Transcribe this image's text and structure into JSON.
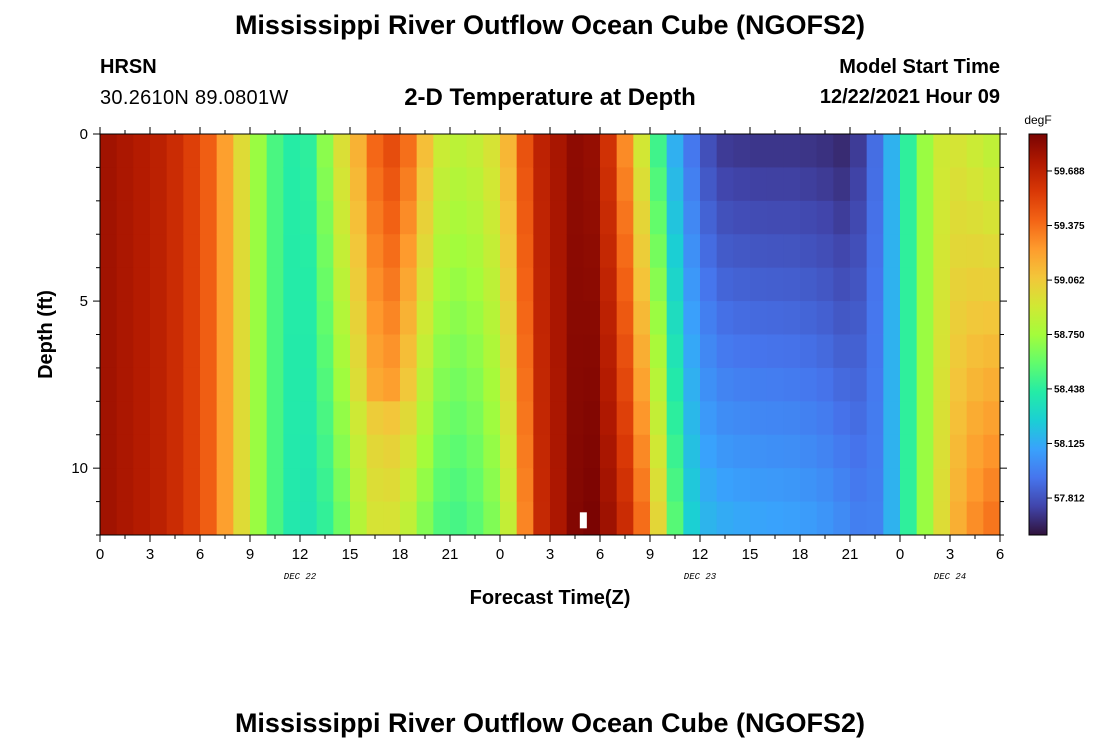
{
  "header": {
    "title": "Mississippi River Outflow Ocean Cube (NGOFS2)",
    "station_id": "HRSN",
    "station_coords": "30.2610N  89.0801W",
    "subtitle": "2-D Temperature at Depth",
    "model_start_label": "Model Start Time",
    "model_start_value": "12/22/2021 Hour 09"
  },
  "footer": {
    "title": "Mississippi River Outflow Ocean Cube (NGOFS2)"
  },
  "chart_data": {
    "type": "heatmap",
    "title": "2-D Temperature at Depth",
    "xlabel": "Forecast Time(Z)",
    "ylabel": "Depth (ft)",
    "x_unit": "hours since 12/22 00Z",
    "xlim": [
      0,
      54
    ],
    "ylim": [
      0,
      12
    ],
    "y_inverted": true,
    "x_ticks": [
      0,
      3,
      6,
      9,
      12,
      15,
      18,
      21,
      24,
      27,
      30,
      33,
      36,
      39,
      42,
      45,
      48,
      51,
      54
    ],
    "x_tick_labels": [
      "0",
      "3",
      "6",
      "9",
      "12",
      "15",
      "18",
      "21",
      "0",
      "3",
      "6",
      "9",
      "12",
      "15",
      "18",
      "21",
      "0",
      "3",
      "6"
    ],
    "date_labels": [
      {
        "hour": 12,
        "text": "DEC 22"
      },
      {
        "hour": 36,
        "text": "DEC 23"
      },
      {
        "hour": 51,
        "text": "DEC 24"
      }
    ],
    "y_ticks": [
      0,
      5,
      10
    ],
    "y_tick_labels": [
      "0",
      "5",
      "10"
    ],
    "colorbar": {
      "unit": "degF",
      "min": 57.6,
      "max": 59.9,
      "tick_values": [
        59.688,
        59.375,
        59.062,
        58.75,
        58.438,
        58.125,
        57.812
      ],
      "tick_labels": [
        "59.688",
        "59.375",
        "59.062",
        "58.750",
        "58.438",
        "58.125",
        "57.812"
      ],
      "colors": [
        "#30123b",
        "#4145ab",
        "#4675ed",
        "#39a2fc",
        "#1bcfd4",
        "#24eca6",
        "#61fc6c",
        "#a4fc3b",
        "#d1e834",
        "#f3c63a",
        "#fe9b2d",
        "#f36315",
        "#d93806",
        "#b11901",
        "#7a0402"
      ]
    },
    "time_step_hours": 1,
    "depth_layers": 12,
    "profiles": [
      {
        "hour": 0,
        "surface": 59.8,
        "bottom": 59.8
      },
      {
        "hour": 4,
        "surface": 59.68,
        "bottom": 59.68
      },
      {
        "hour": 6,
        "surface": 59.5,
        "bottom": 59.5
      },
      {
        "hour": 7,
        "surface": 59.35,
        "bottom": 59.35
      },
      {
        "hour": 8,
        "surface": 59.1,
        "bottom": 59.1
      },
      {
        "hour": 9,
        "surface": 58.85,
        "bottom": 58.85
      },
      {
        "hour": 10,
        "surface": 58.6,
        "bottom": 58.6
      },
      {
        "hour": 11,
        "surface": 58.45,
        "bottom": 58.45
      },
      {
        "hour": 12,
        "surface": 58.4,
        "bottom": 58.35
      },
      {
        "hour": 13,
        "surface": 58.5,
        "bottom": 58.4
      },
      {
        "hour": 14,
        "surface": 58.9,
        "bottom": 58.5
      },
      {
        "hour": 15,
        "surface": 59.05,
        "bottom": 58.7
      },
      {
        "hour": 16,
        "surface": 59.2,
        "bottom": 58.9
      },
      {
        "hour": 17,
        "surface": 59.35,
        "bottom": 58.95
      },
      {
        "hour": 18,
        "surface": 59.4,
        "bottom": 58.9
      },
      {
        "hour": 19,
        "surface": 59.3,
        "bottom": 58.75
      },
      {
        "hour": 20,
        "surface": 58.95,
        "bottom": 58.55
      },
      {
        "hour": 21,
        "surface": 58.85,
        "bottom": 58.5
      },
      {
        "hour": 22,
        "surface": 58.85,
        "bottom": 58.5
      },
      {
        "hour": 23,
        "surface": 58.9,
        "bottom": 58.6
      },
      {
        "hour": 24,
        "surface": 59.0,
        "bottom": 58.7
      },
      {
        "hour": 25,
        "surface": 59.3,
        "bottom": 59.0
      },
      {
        "hour": 26,
        "surface": 59.65,
        "bottom": 59.6
      },
      {
        "hour": 28,
        "surface": 59.8,
        "bottom": 59.8
      },
      {
        "hour": 29,
        "surface": 59.88,
        "bottom": 59.95
      },
      {
        "hour": 30,
        "surface": 59.75,
        "bottom": 59.85
      },
      {
        "hour": 31,
        "surface": 59.45,
        "bottom": 59.75
      },
      {
        "hour": 32,
        "surface": 59.1,
        "bottom": 59.55
      },
      {
        "hour": 33,
        "surface": 58.7,
        "bottom": 59.25
      },
      {
        "hour": 34,
        "surface": 58.25,
        "bottom": 58.8
      },
      {
        "hour": 35,
        "surface": 58.0,
        "bottom": 58.35
      },
      {
        "hour": 36,
        "surface": 57.85,
        "bottom": 58.2
      },
      {
        "hour": 37,
        "surface": 57.72,
        "bottom": 58.15
      },
      {
        "hour": 39,
        "surface": 57.7,
        "bottom": 58.12
      },
      {
        "hour": 42,
        "surface": 57.7,
        "bottom": 58.1
      },
      {
        "hour": 44,
        "surface": 57.68,
        "bottom": 58.05
      },
      {
        "hour": 45,
        "surface": 57.65,
        "bottom": 58.0
      },
      {
        "hour": 46,
        "surface": 57.8,
        "bottom": 57.95
      },
      {
        "hour": 47,
        "surface": 58.0,
        "bottom": 58.0
      },
      {
        "hour": 48,
        "surface": 58.3,
        "bottom": 58.3
      },
      {
        "hour": 49,
        "surface": 58.6,
        "bottom": 58.6
      },
      {
        "hour": 50,
        "surface": 58.85,
        "bottom": 58.85
      },
      {
        "hour": 51,
        "surface": 58.95,
        "bottom": 59.1
      },
      {
        "hour": 52,
        "surface": 58.9,
        "bottom": 59.25
      },
      {
        "hour": 53,
        "surface": 58.85,
        "bottom": 59.35
      },
      {
        "hour": 54,
        "surface": 58.8,
        "bottom": 59.4
      }
    ],
    "features": {
      "warm_tongue": {
        "hour_start": 15,
        "hour_end": 19,
        "to_depth": 7.5
      },
      "cool_wedge": {
        "hour_start": 9,
        "hour_end": 14,
        "to_depth": 12
      },
      "missing_cell": {
        "hour": 29,
        "depth": 11.8
      }
    }
  }
}
